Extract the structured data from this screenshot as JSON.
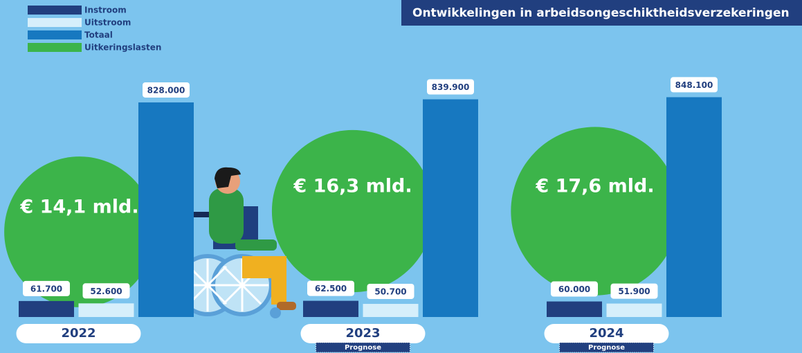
{
  "chart_data": {
    "type": "bar",
    "title": "Ontwikkelingen in arbeidsongeschiktheidsverzekeringen",
    "categories": [
      "2022",
      "2023",
      "2024"
    ],
    "annotations": [
      null,
      "Prognose",
      "Prognose"
    ],
    "series": [
      {
        "name": "Instroom",
        "color": "#213f7f",
        "values": [
          61700,
          62500,
          60000
        ],
        "value_labels": [
          "61.700",
          "62.500",
          "60.000"
        ]
      },
      {
        "name": "Uitstroom",
        "color": "#d6effb",
        "values": [
          52600,
          50700,
          51900
        ],
        "value_labels": [
          "52.600",
          "50.700",
          "51.900"
        ]
      },
      {
        "name": "Totaal",
        "color": "#1778c0",
        "values": [
          828000,
          839900,
          848100
        ],
        "value_labels": [
          "828.000",
          "839.900",
          "848.100"
        ]
      }
    ],
    "bubbles": {
      "name": "Uitkeringslasten",
      "color": "#3cb44a",
      "values": [
        14.1,
        16.3,
        17.6
      ],
      "value_labels": [
        "€ 14,1 mld.",
        "€ 16,3 mld.",
        "€ 17,6 mld."
      ]
    },
    "ylim": [
      0,
      900000
    ]
  }
}
